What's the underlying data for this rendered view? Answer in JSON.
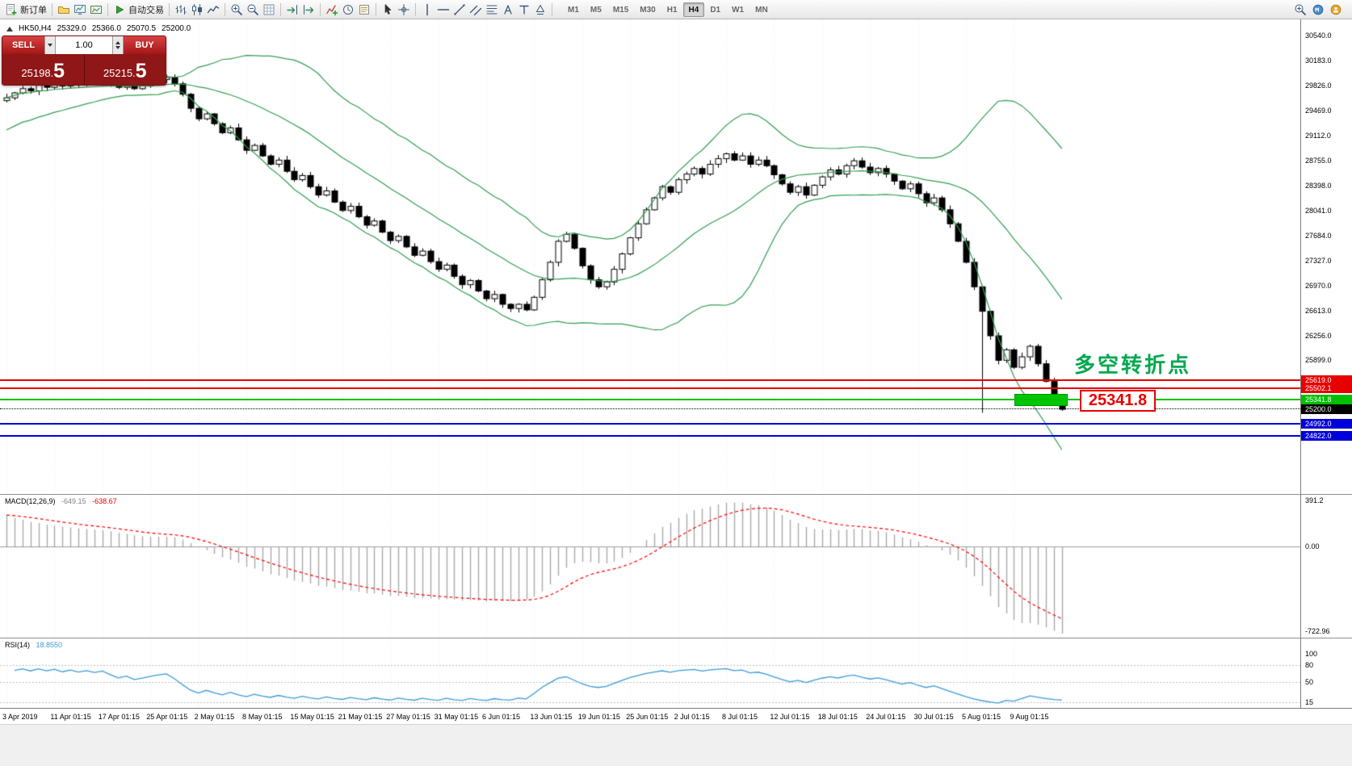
{
  "toolbar": {
    "groups": [
      {
        "items": [
          {
            "icon": "new-order-icon",
            "label": "新订单"
          }
        ]
      },
      {
        "items": [
          {
            "icon": "profiles-icon"
          },
          {
            "icon": "charts-icon"
          },
          {
            "icon": "objects-icon"
          }
        ]
      },
      {
        "items": [
          {
            "icon": "autotrade-icon",
            "label": "自动交易"
          }
        ]
      },
      {
        "items": [
          {
            "icon": "bar-chart-icon"
          },
          {
            "icon": "candles-icon"
          },
          {
            "icon": "line-chart-icon"
          }
        ]
      },
      {
        "items": [
          {
            "icon": "zoom-in-icon"
          },
          {
            "icon": "zoom-out-icon"
          },
          {
            "icon": "grid-icon"
          }
        ]
      },
      {
        "items": [
          {
            "icon": "autoscroll-icon"
          },
          {
            "icon": "chart-shift-icon"
          }
        ]
      },
      {
        "items": [
          {
            "icon": "indicators-icon"
          },
          {
            "icon": "clock-icon"
          },
          {
            "icon": "templates-icon"
          }
        ]
      },
      {
        "items": [
          {
            "icon": "cursor-icon"
          },
          {
            "icon": "crosshair-icon"
          }
        ]
      },
      {
        "items": [
          {
            "icon": "vline-icon"
          },
          {
            "icon": "hline-icon"
          },
          {
            "icon": "trendline-icon"
          },
          {
            "icon": "channel-icon"
          },
          {
            "icon": "fibo-icon"
          },
          {
            "icon": "text-icon"
          },
          {
            "icon": "label-icon"
          },
          {
            "icon": "shapes-icon"
          }
        ]
      }
    ],
    "timeframes": [
      {
        "label": "M1"
      },
      {
        "label": "M5"
      },
      {
        "label": "M15"
      },
      {
        "label": "M30"
      },
      {
        "label": "H1"
      },
      {
        "label": "H4",
        "active": true
      },
      {
        "label": "D1"
      },
      {
        "label": "W1"
      },
      {
        "label": "MN"
      }
    ],
    "right_items": [
      {
        "icon": "search-icon"
      },
      {
        "icon": "metaquotes-icon"
      },
      {
        "icon": "community-icon"
      }
    ]
  },
  "ohlc_header": {
    "symbol": "HK50,H4",
    "open": "25329.0",
    "high": "25366.0",
    "low": "25070.5",
    "close": "25200.0"
  },
  "trade_panel": {
    "sell_label": "SELL",
    "buy_label": "BUY",
    "volume": "1.00",
    "sell_price_main": "25198.",
    "sell_price_big": "5",
    "buy_price_main": "25215.",
    "buy_price_big": "5"
  },
  "chart_data": {
    "type": "candlestick",
    "symbol": "HK50",
    "timeframe": "H4",
    "x_labels": [
      "3 Apr 2019",
      "11 Apr 01:15",
      "17 Apr 01:15",
      "25 Apr 01:15",
      "2 May 01:15",
      "8 May 01:15",
      "15 May 01:15",
      "21 May 01:15",
      "27 May 01:15",
      "31 May 01:15",
      "6 Jun 01:15",
      "13 Jun 01:15",
      "19 Jun 01:15",
      "25 Jun 01:15",
      "2 Jul 01:15",
      "8 Jul 01:15",
      "12 Jul 01:15",
      "18 Jul 01:15",
      "24 Jul 01:15",
      "30 Jul 01:15",
      "5 Aug 01:15",
      "9 Aug 01:15"
    ],
    "y_axis_labels": [
      "30540.0",
      "30183.0",
      "29826.0",
      "29469.0",
      "29112.0",
      "28755.0",
      "28398.0",
      "28041.0",
      "27684.0",
      "27327.0",
      "26970.0",
      "26613.0",
      "26256.0",
      "25899.0"
    ],
    "closes": [
      29650,
      29720,
      29780,
      29750,
      29830,
      29800,
      29860,
      29820,
      29880,
      29850,
      29900,
      29870,
      29920,
      29860,
      29800,
      29850,
      29780,
      29820,
      29870,
      29910,
      29940,
      29850,
      29700,
      29500,
      29350,
      29420,
      29280,
      29150,
      29220,
      29050,
      28900,
      28970,
      28820,
      28700,
      28760,
      28600,
      28480,
      28540,
      28380,
      28260,
      28320,
      28160,
      28040,
      28100,
      27950,
      27830,
      27890,
      27730,
      27610,
      27670,
      27520,
      27400,
      27460,
      27310,
      27200,
      27260,
      27100,
      26980,
      27040,
      26890,
      26780,
      26840,
      26700,
      26640,
      26700,
      26620,
      26800,
      27050,
      27300,
      27600,
      27700,
      27500,
      27250,
      27050,
      26950,
      27020,
      27200,
      27420,
      27650,
      27850,
      28050,
      28220,
      28380,
      28300,
      28480,
      28560,
      28640,
      28560,
      28700,
      28780,
      28850,
      28760,
      28820,
      28700,
      28760,
      28680,
      28550,
      28420,
      28300,
      28380,
      28260,
      28400,
      28520,
      28620,
      28560,
      28680,
      28750,
      28660,
      28580,
      28640,
      28560,
      28460,
      28350,
      28420,
      28280,
      28150,
      28220,
      28050,
      27850,
      27600,
      27300,
      26950,
      26600,
      26250,
      25900,
      26050,
      25800,
      25950,
      26100,
      25850,
      25600,
      25350,
      25200
    ],
    "special_low": {
      "index": 122,
      "low": 25150
    },
    "bollinger": {
      "period": 20,
      "deviation": 2,
      "color": "#2f9e4f"
    },
    "horizontal_lines": [
      {
        "price": 25619.0,
        "label": "25619.0",
        "color": "#e80000",
        "style": "solid"
      },
      {
        "price": 25502.1,
        "label": "25502.1",
        "color": "#e80000",
        "style": "solid"
      },
      {
        "price": 25341.8,
        "label": "25341.8",
        "color": "#00c000",
        "style": "solid"
      },
      {
        "price": 25200.0,
        "label": "25200.0",
        "color": "#000000",
        "style": "dotted"
      },
      {
        "price": 24992.0,
        "label": "24992.0",
        "color": "#0000d8",
        "style": "solid"
      },
      {
        "price": 24822.0,
        "label": "24822.0",
        "color": "#0000d8",
        "style": "solid"
      }
    ],
    "annotation_text": "多空转折点",
    "annotation_color": "#00a84e",
    "price_callout": "25341.8",
    "macd": {
      "label": "MACD(12,26,9)",
      "fast": 12,
      "slow": 26,
      "signal": 9,
      "value_main": "-649.15",
      "value_signal": "-638.67",
      "axis_labels": [
        "391.2",
        "0.00",
        "-722.96"
      ]
    },
    "rsi": {
      "label": "RSI(14)",
      "period": 14,
      "value": "18.8550",
      "axis_labels": [
        "100",
        "80",
        "50",
        "15"
      ]
    }
  }
}
